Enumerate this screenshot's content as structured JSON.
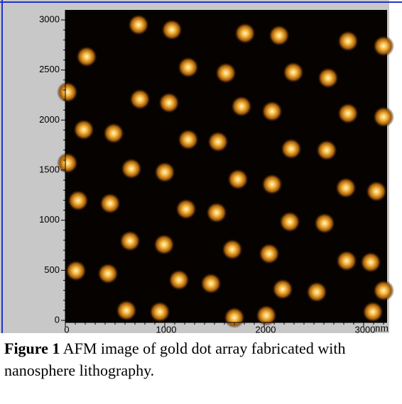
{
  "figure": {
    "y_tick_labels": [
      "3000",
      "2500",
      "2000",
      "1500",
      "1000",
      "500",
      "0"
    ],
    "x_tick_labels": [
      "0",
      "1000",
      "2000",
      "3000"
    ],
    "x_unit": "nm",
    "caption": {
      "label": "Figure 1",
      "text": "AFM image of gold dot array fabricated with nanosphere lithography."
    }
  }
}
